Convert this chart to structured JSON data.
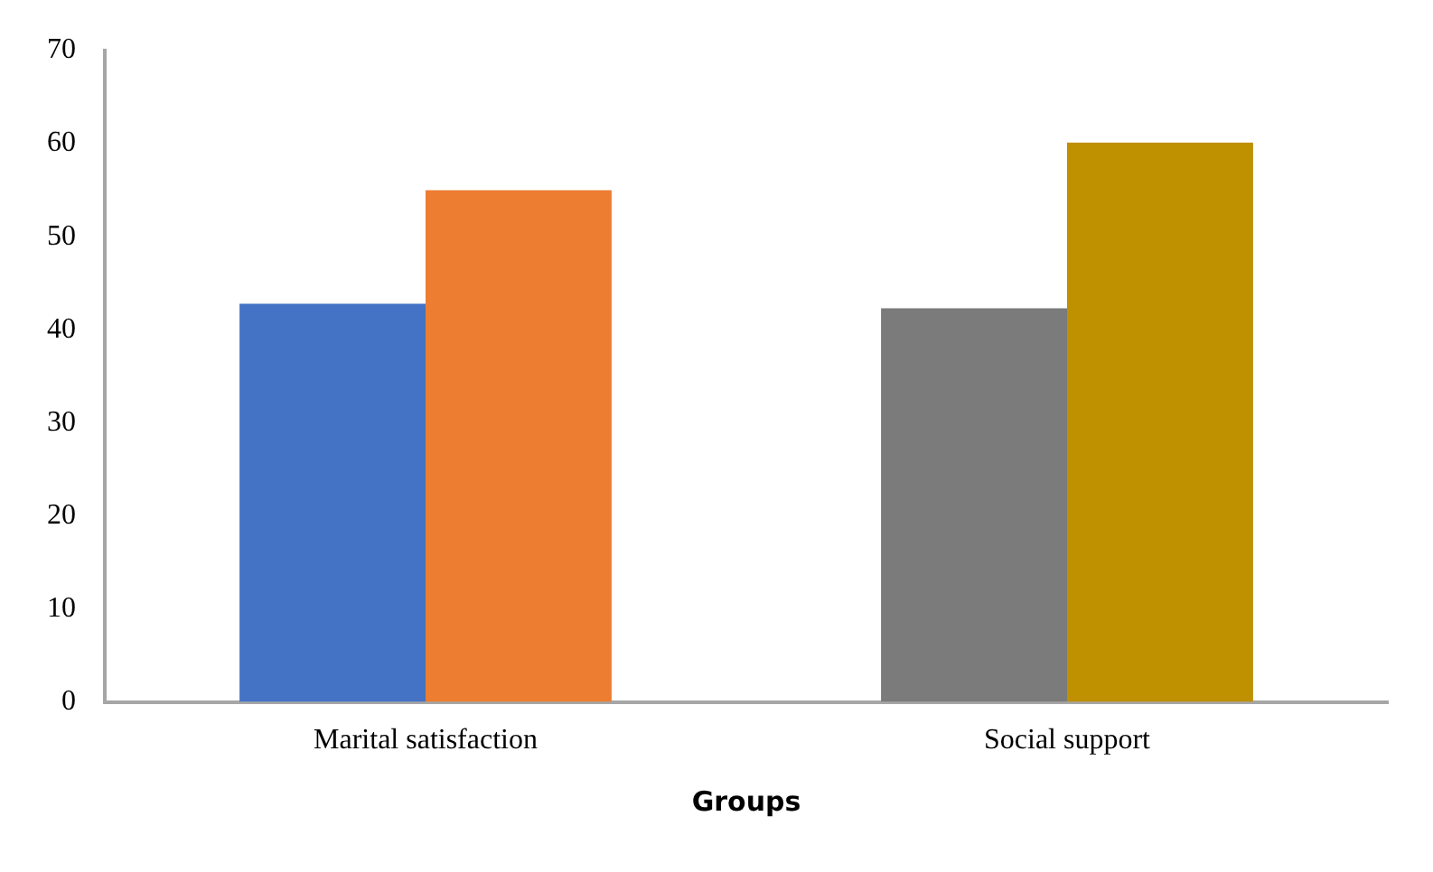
{
  "chart_data": {
    "type": "bar",
    "xlabel": "Groups",
    "categories": [
      "Marital satisfaction",
      "Social support"
    ],
    "series": [
      {
        "colors": [
          "#4472c4",
          "#7b7b7b"
        ],
        "values": [
          42.8,
          42.3
        ]
      },
      {
        "colors": [
          "#ed7d31",
          "#bf9000"
        ],
        "values": [
          55.0,
          60.1
        ]
      }
    ],
    "ylim": [
      0,
      70
    ],
    "yticks": [
      0,
      10,
      20,
      30,
      40,
      50,
      60,
      70
    ],
    "grid": false,
    "legend": false
  }
}
